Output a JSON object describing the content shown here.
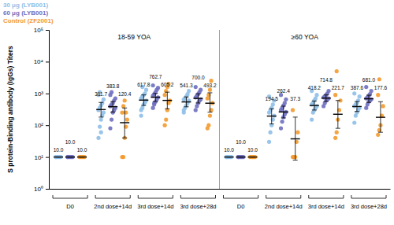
{
  "chart_data": {
    "type": "scatter",
    "y_label": "S protein-Binding antibody (IgGs) Titers",
    "log": "y",
    "ylim": [
      1,
      100000
    ],
    "yticks": [
      {
        "value": 1,
        "label": "10⁰"
      },
      {
        "value": 10,
        "label": "10¹"
      },
      {
        "value": 100,
        "label": "10²"
      },
      {
        "value": 1000,
        "label": "10³"
      },
      {
        "value": 10000,
        "label": "10⁴"
      },
      {
        "value": 100000,
        "label": "10⁵"
      }
    ],
    "categories": [
      "D0",
      "2nd dose+14d",
      "3rd dose+14d",
      "3rd dose+28d"
    ],
    "data_labels": true,
    "legend": "top-left",
    "series": [
      {
        "name": "30 μg (LYB001)",
        "color": "#8fbfe8"
      },
      {
        "name": "60 μg (LYB001)",
        "color": "#6f6fc0"
      },
      {
        "name": "Control (ZF2001)",
        "color": "#f39a2e"
      }
    ],
    "panels": [
      {
        "title": "18-59 YOA",
        "series": [
          {
            "values": [
              10,
              311.7,
              617.8,
              541.3
            ],
            "value_labels": [
              "10.0",
              "311.7",
              "617.8",
              "541.3"
            ],
            "ci_low": [
              10,
              180,
              420,
              380
            ],
            "ci_high": [
              10,
              520,
              900,
              780
            ],
            "points": [
              [
                10,
                10,
                10,
                10,
                10,
                10
              ],
              [
                40,
                90,
                150,
                200,
                250,
                300,
                350,
                420,
                500,
                650,
                900,
                1100,
                60
              ],
              [
                200,
                350,
                450,
                520,
                600,
                700,
                800,
                900,
                1000,
                1300,
                300,
                1600
              ],
              [
                250,
                350,
                420,
                500,
                600,
                650,
                700,
                800,
                950,
                1200,
                300
              ]
            ]
          },
          {
            "values": [
              10,
              383.8,
              762.7,
              700.0
            ],
            "value_labels": [
              "10.0",
              "383.8",
              "762.7",
              "700.0"
            ],
            "ci_low": [
              10,
              260,
              560,
              500
            ],
            "ci_high": [
              10,
              560,
              1000,
              980
            ],
            "points": [
              [
                10,
                10,
                10,
                10,
                10,
                10
              ],
              [
                80,
                150,
                250,
                300,
                350,
                400,
                450,
                500,
                600,
                700,
                900,
                1100
              ],
              [
                350,
                450,
                550,
                650,
                750,
                850,
                950,
                1100,
                1300,
                1500,
                1800,
                500
              ],
              [
                300,
                400,
                500,
                600,
                650,
                750,
                850,
                950,
                1100,
                1300,
                1600
              ]
            ]
          },
          {
            "values": [
              10,
              120.4,
              605.2,
              493.2
            ],
            "value_labels": [
              "10.0",
              "120.4",
              "605.2",
              "493.2"
            ],
            "ci_low": [
              10,
              40,
              330,
              260
            ],
            "ci_high": [
              10,
              350,
              1100,
              1050
            ],
            "points": [
              [
                10,
                10,
                10,
                10,
                10
              ],
              [
                10,
                10,
                40,
                90,
                150,
                250,
                400,
                600,
                250
              ],
              [
                100,
                150,
                300,
                500,
                600,
                900,
                1200,
                1600,
                2000
              ],
              [
                80,
                100,
                200,
                300,
                500,
                700,
                900,
                1300,
                2500
              ]
            ]
          }
        ]
      },
      {
        "title": "≥60 YOA",
        "series": [
          {
            "values": [
              10,
              194.5,
              418.2,
              387.6
            ],
            "value_labels": [
              "10.0",
              "194.5",
              "418.2",
              "387.6"
            ],
            "ci_low": [
              10,
              110,
              300,
              270
            ],
            "ci_high": [
              10,
              330,
              580,
              560
            ],
            "points": [
              [
                10,
                10,
                10,
                10,
                10,
                10
              ],
              [
                30,
                60,
                100,
                150,
                200,
                250,
                300,
                350,
                450,
                600,
                800
              ],
              [
                150,
                250,
                300,
                350,
                400,
                450,
                500,
                600,
                700,
                900,
                1200
              ],
              [
                120,
                200,
                250,
                300,
                350,
                400,
                450,
                500,
                600,
                800,
                1000
              ]
            ]
          },
          {
            "values": [
              10,
              262.4,
              714.8,
              681.0
            ],
            "value_labels": [
              "10.0",
              "262.4",
              "714.8",
              "681.0"
            ],
            "ci_low": [
              10,
              170,
              560,
              520
            ],
            "ci_high": [
              10,
              400,
              900,
              880
            ],
            "points": [
              [
                10,
                10,
                10,
                10,
                10,
                10
              ],
              [
                80,
                130,
                180,
                220,
                260,
                300,
                350,
                420,
                500,
                650,
                900
              ],
              [
                400,
                500,
                600,
                650,
                700,
                750,
                800,
                900,
                1000,
                1200
              ],
              [
                350,
                450,
                550,
                600,
                650,
                700,
                750,
                850,
                950,
                1200,
                1600
              ]
            ]
          },
          {
            "values": [
              10,
              37.3,
              221.7,
              177.6
            ],
            "value_labels": [
              "10.0",
              "37.3",
              "221.7",
              "177.6"
            ],
            "ci_low": [
              10,
              8,
              80,
              60
            ],
            "ci_high": [
              10,
              180,
              600,
              550
            ],
            "points": [
              [
                10,
                10,
                10,
                10,
                10
              ],
              [
                10,
                10,
                10,
                30,
                60,
                300
              ],
              [
                40,
                60,
                150,
                300,
                600,
                900,
                5000
              ],
              [
                50,
                70,
                100,
                200,
                400,
                900,
                2800
              ]
            ]
          }
        ]
      }
    ]
  }
}
